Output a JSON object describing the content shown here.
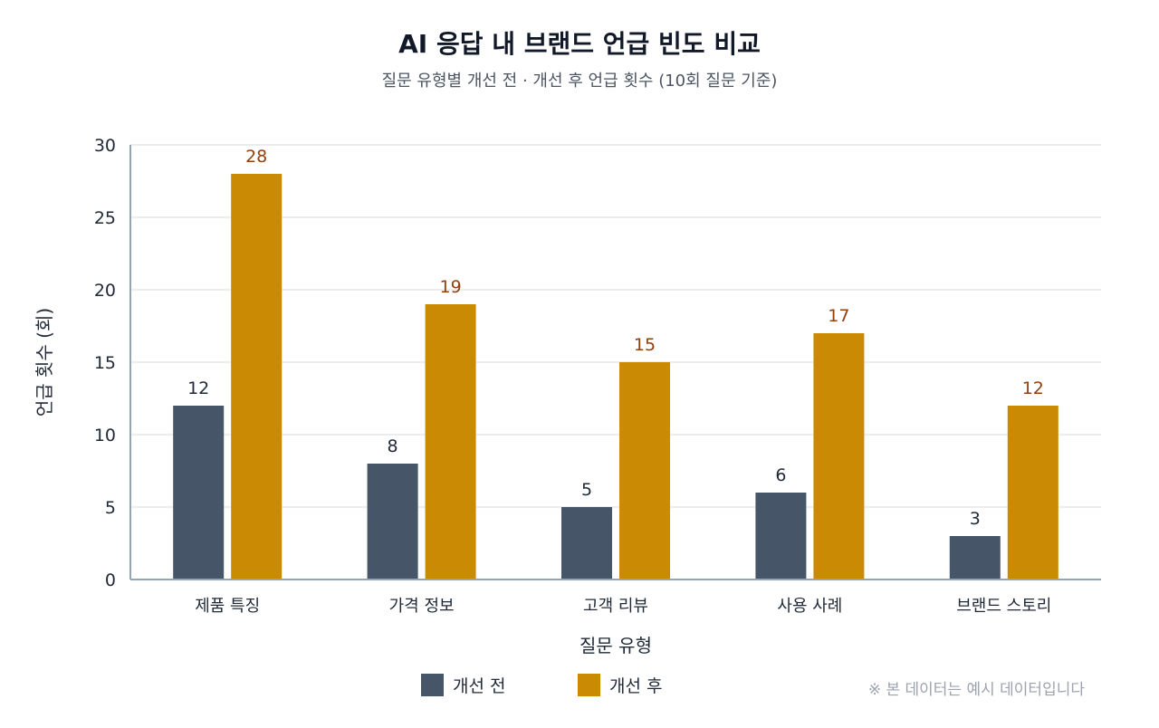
{
  "chart_data": {
    "type": "bar",
    "title": "AI 응답 내 브랜드 언급 빈도 비교",
    "subtitle": "질문 유형별 개선 전 · 개선 후 언급 횟수 (10회 질문 기준)",
    "xlabel": "질문 유형",
    "ylabel": "언급 횟수 (회)",
    "categories": [
      "제품 특징",
      "가격 정보",
      "고객 리뷰",
      "사용 사례",
      "브랜드 스토리"
    ],
    "series": [
      {
        "name": "개선 전",
        "values": [
          12,
          8,
          5,
          6,
          3
        ],
        "color": "#475569",
        "label_color": "#1f2937"
      },
      {
        "name": "개선 후",
        "values": [
          28,
          19,
          15,
          17,
          12
        ],
        "color": "#CA8A04",
        "label_color": "#92400E"
      }
    ],
    "ylim": [
      0,
      30
    ],
    "yticks": [
      0,
      5,
      10,
      15,
      20,
      25,
      30
    ],
    "grid": true,
    "legend_position": "bottom-center",
    "note": "※ 본 데이터는 예시 데이터입니다"
  }
}
